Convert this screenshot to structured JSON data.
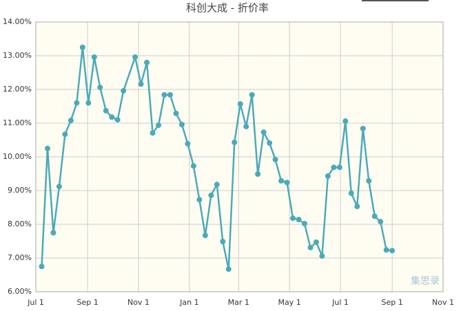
{
  "chart_data": {
    "type": "line",
    "title": "科创大成 - 折价率",
    "watermark": "集思录",
    "x": [
      7,
      14,
      21,
      28,
      35,
      42,
      49,
      56,
      63,
      70,
      77,
      84,
      91,
      98,
      105,
      119,
      126,
      133,
      140,
      147,
      154,
      161,
      168,
      175,
      182,
      189,
      196,
      203,
      210,
      217,
      224,
      231,
      238,
      245,
      252,
      259,
      266,
      273,
      280,
      287,
      294,
      301,
      308,
      315,
      322,
      329,
      336,
      343,
      350,
      357,
      364,
      371,
      378,
      385,
      392,
      399,
      406,
      413,
      420,
      427
    ],
    "series": [
      {
        "name": "折价率",
        "color": "#4aaab9",
        "values": [
          6.75,
          10.25,
          7.75,
          9.12,
          10.67,
          11.08,
          11.6,
          13.25,
          11.6,
          12.96,
          12.06,
          11.37,
          11.18,
          11.1,
          11.96,
          12.96,
          12.16,
          12.8,
          10.71,
          10.94,
          11.84,
          11.84,
          11.29,
          10.96,
          10.39,
          9.73,
          8.73,
          7.67,
          8.86,
          9.18,
          7.49,
          6.67,
          10.43,
          11.57,
          10.9,
          11.84,
          9.49,
          10.73,
          10.41,
          9.92,
          9.29,
          9.24,
          8.18,
          8.14,
          8.02,
          7.31,
          7.47,
          7.06,
          9.43,
          9.69,
          9.69,
          11.06,
          8.92,
          8.53,
          10.84,
          9.29,
          8.24,
          8.08,
          7.24,
          7.22
        ]
      }
    ],
    "xlim": [
      0,
      488
    ],
    "xticks": [
      {
        "value": 0,
        "label": "Jul 1"
      },
      {
        "value": 62,
        "label": "Sep 1"
      },
      {
        "value": 123,
        "label": "Nov 1"
      },
      {
        "value": 184,
        "label": "Jan 1"
      },
      {
        "value": 243,
        "label": "Mar 1"
      },
      {
        "value": 304,
        "label": "May 1"
      },
      {
        "value": 365,
        "label": "Jul 1"
      },
      {
        "value": 427,
        "label": "Sep 1"
      },
      {
        "value": 488,
        "label": "Nov 1"
      }
    ],
    "ylim": [
      6,
      14
    ],
    "yticks": [
      {
        "value": 6,
        "label": "6.00%"
      },
      {
        "value": 7,
        "label": "7.00%"
      },
      {
        "value": 8,
        "label": "8.00%"
      },
      {
        "value": 9,
        "label": "9.00%"
      },
      {
        "value": 10,
        "label": "10.00%"
      },
      {
        "value": 11,
        "label": "11.00%"
      },
      {
        "value": 12,
        "label": "12.00%"
      },
      {
        "value": 13,
        "label": "13.00%"
      },
      {
        "value": 14,
        "label": "14.00%"
      }
    ],
    "grid": true
  }
}
